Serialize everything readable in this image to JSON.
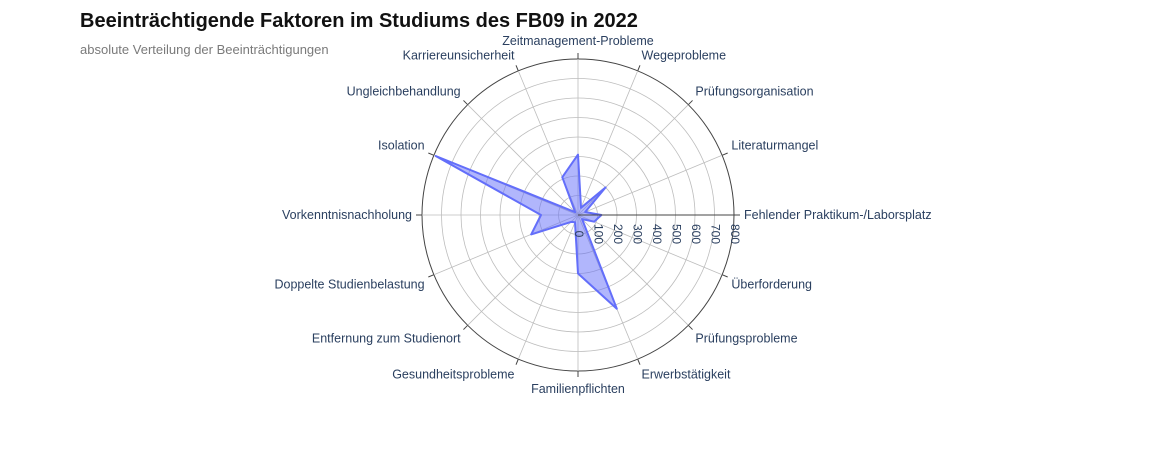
{
  "chart_data": {
    "type": "radar",
    "title": "Beeinträchtigende Faktoren im Studiums des FB09 in 2022",
    "subtitle": "absolute Verteilung der Beeinträchtigungen",
    "categories": [
      "Fehlender Praktikum-/Laborsplatz",
      "Literaturmangel",
      "Prüfungsorganisation",
      "Wegeprobleme",
      "Zeitmanagement-Probleme",
      "Karriereunsicherheit",
      "Ungleichbehandlung",
      "Isolation",
      "Vorkenntnisnachholung",
      "Doppelte Studienbelastung",
      "Entfernung zum Studienort",
      "Gesundheitsprobleme",
      "Familienpflichten",
      "Erwerbstätigkeit",
      "Prüfungsprobleme",
      "Überforderung"
    ],
    "values": [
      120,
      40,
      200,
      40,
      310,
      210,
      20,
      790,
      190,
      260,
      50,
      40,
      300,
      520,
      30,
      90
    ],
    "radial_range": [
      0,
      800
    ],
    "radial_ticks": [
      0,
      100,
      200,
      300,
      400,
      500,
      600,
      700,
      800
    ],
    "colors": {
      "fill": "rgba(99,110,250,0.5)",
      "line": "#636efa",
      "grid": "#bdbdbd",
      "axis": "#444444"
    }
  }
}
